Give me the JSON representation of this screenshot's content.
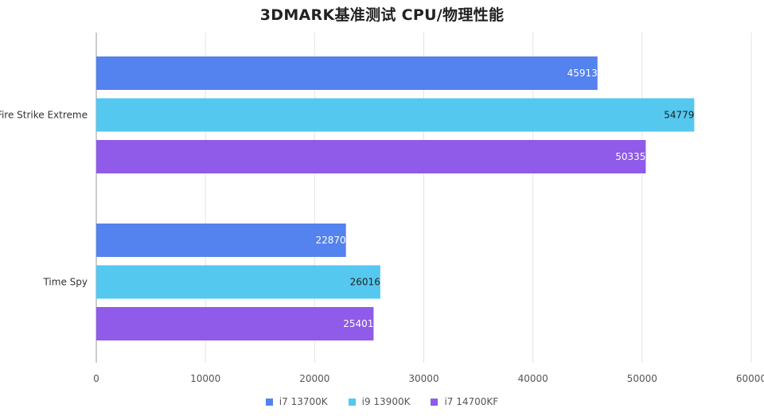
{
  "chart_data": {
    "type": "bar",
    "orientation": "horizontal",
    "title": "3DMARK基准测试 CPU/物理性能",
    "xlabel": "",
    "ylabel": "",
    "xlim": [
      0,
      60000
    ],
    "x_ticks": [
      0,
      10000,
      20000,
      30000,
      40000,
      50000,
      60000
    ],
    "x_tick_labels": [
      "0",
      "10000",
      "20000",
      "30000",
      "40000",
      "50000",
      "60000"
    ],
    "grid": "vertical",
    "categories": [
      "Fire Strike Extreme",
      "Time Spy"
    ],
    "series": [
      {
        "name": "i7 13700K",
        "color": "#5482ee",
        "values": [
          45913,
          22870
        ],
        "labels": [
          "45913",
          "22870"
        ]
      },
      {
        "name": "i9 13900K",
        "color": "#55c8f0",
        "values": [
          54779,
          26016
        ],
        "labels": [
          "54779",
          "26016"
        ]
      },
      {
        "name": "i7 14700KF",
        "color": "#8f5be8",
        "values": [
          50335,
          25401
        ],
        "labels": [
          "50335",
          "25401"
        ]
      }
    ],
    "legend_position": "bottom-center"
  }
}
